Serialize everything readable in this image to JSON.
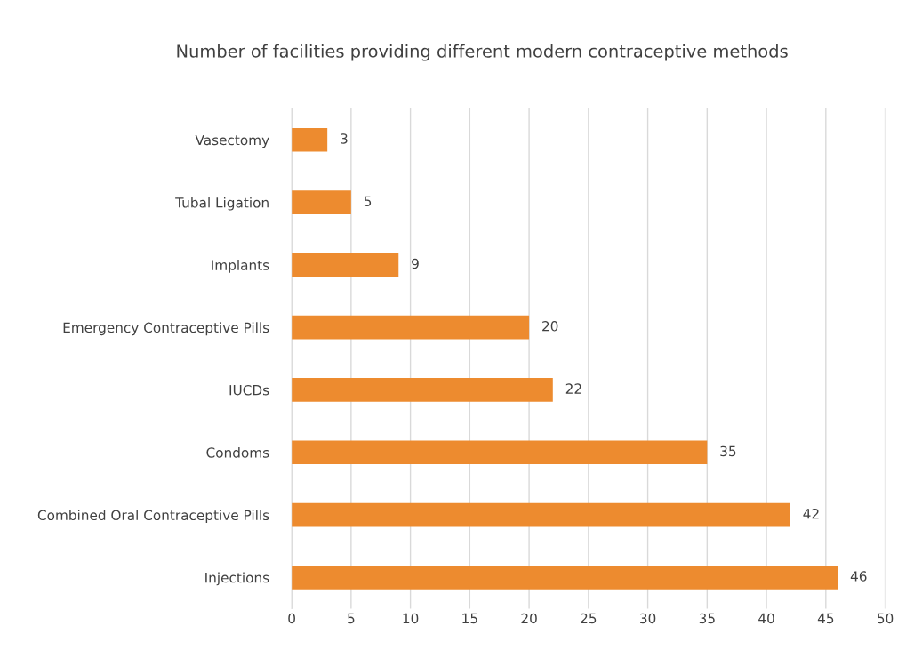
{
  "chart_data": {
    "type": "bar",
    "orientation": "horizontal",
    "title": "Number of facilities providing different modern contraceptive methods",
    "categories": [
      "Vasectomy",
      "Tubal Ligation",
      "Implants",
      "Emergency Contraceptive Pills",
      "IUCDs",
      "Condoms",
      "Combined Oral Contraceptive Pills",
      "Injections"
    ],
    "values": [
      3,
      5,
      9,
      20,
      22,
      35,
      42,
      46
    ],
    "color": "#ed8b2f",
    "xlim": [
      0,
      50
    ],
    "xticks": [
      0,
      5,
      10,
      15,
      20,
      25,
      30,
      35,
      40,
      45,
      50
    ],
    "grid": "x",
    "data_labels": true
  }
}
